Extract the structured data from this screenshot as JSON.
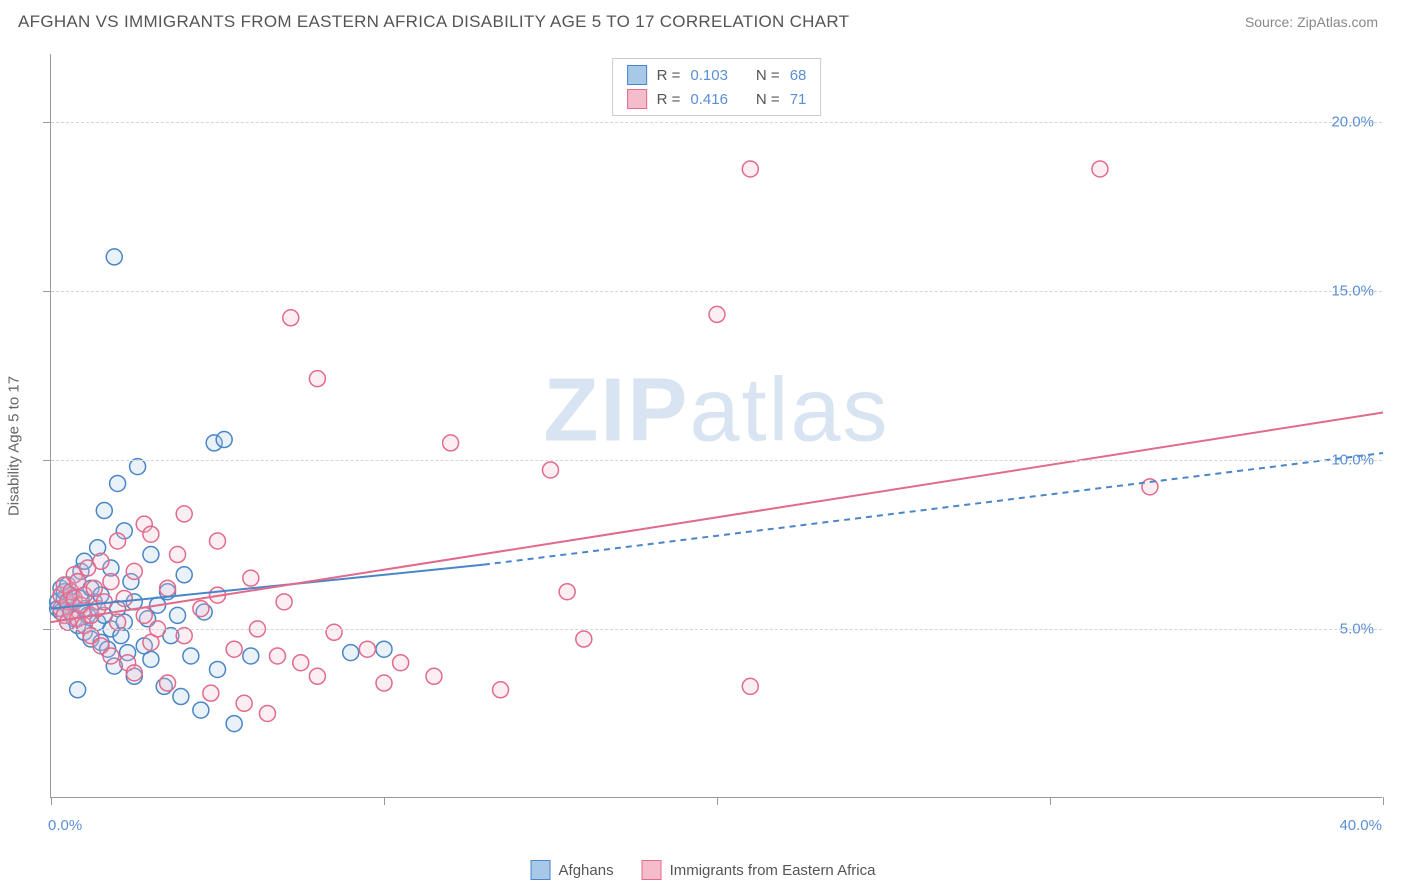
{
  "header": {
    "title": "AFGHAN VS IMMIGRANTS FROM EASTERN AFRICA DISABILITY AGE 5 TO 17 CORRELATION CHART",
    "source": "Source: ZipAtlas.com"
  },
  "watermark": {
    "bold": "ZIP",
    "rest": "atlas"
  },
  "chart": {
    "type": "scatter",
    "xlim": [
      0,
      40
    ],
    "ylim": [
      0,
      22
    ],
    "yticks": [
      5,
      10,
      15,
      20
    ],
    "ytick_labels": [
      "5.0%",
      "10.0%",
      "15.0%",
      "20.0%"
    ],
    "xticks": [
      0,
      10,
      20,
      30,
      40
    ],
    "xmin_label": "0.0%",
    "xmax_label": "40.0%",
    "yaxis_title": "Disability Age 5 to 17",
    "grid_color": "#d5d5d5",
    "background_color": "#ffffff",
    "marker_radius": 8,
    "marker_stroke_width": 1.5,
    "marker_fill_opacity": 0.25,
    "line_width": 2,
    "series": [
      {
        "id": "afghans",
        "label": "Afghans",
        "color_stroke": "#4a86c7",
        "color_fill": "#a8c8e8",
        "r_label": "R =",
        "r_value": "0.103",
        "n_label": "N =",
        "n_value": "68",
        "trend": {
          "x1": 0,
          "y1": 5.6,
          "x2": 13,
          "y2": 6.9,
          "x2_dash": 40,
          "y2_dash": 10.2
        },
        "points": [
          [
            0.2,
            5.8
          ],
          [
            0.2,
            5.6
          ],
          [
            0.3,
            6.2
          ],
          [
            0.3,
            5.5
          ],
          [
            0.4,
            5.9
          ],
          [
            0.4,
            6.1
          ],
          [
            0.4,
            5.4
          ],
          [
            0.5,
            6.3
          ],
          [
            0.5,
            5.7
          ],
          [
            0.5,
            5.2
          ],
          [
            0.6,
            6.0
          ],
          [
            0.6,
            5.5
          ],
          [
            0.7,
            5.8
          ],
          [
            0.7,
            5.3
          ],
          [
            0.8,
            6.4
          ],
          [
            0.8,
            5.1
          ],
          [
            0.9,
            5.9
          ],
          [
            0.9,
            6.7
          ],
          [
            1.0,
            5.6
          ],
          [
            1.0,
            4.9
          ],
          [
            1.0,
            7.0
          ],
          [
            1.1,
            5.4
          ],
          [
            1.2,
            6.2
          ],
          [
            1.2,
            4.7
          ],
          [
            1.3,
            5.8
          ],
          [
            1.4,
            7.4
          ],
          [
            1.4,
            5.2
          ],
          [
            1.5,
            4.6
          ],
          [
            1.5,
            6.0
          ],
          [
            1.6,
            8.5
          ],
          [
            1.6,
            5.4
          ],
          [
            1.7,
            4.4
          ],
          [
            1.8,
            6.8
          ],
          [
            1.8,
            5.0
          ],
          [
            1.9,
            3.9
          ],
          [
            2.0,
            5.6
          ],
          [
            2.0,
            9.3
          ],
          [
            2.1,
            4.8
          ],
          [
            2.2,
            7.9
          ],
          [
            2.2,
            5.2
          ],
          [
            2.3,
            4.3
          ],
          [
            2.4,
            6.4
          ],
          [
            2.5,
            3.6
          ],
          [
            2.5,
            5.8
          ],
          [
            2.6,
            9.8
          ],
          [
            2.8,
            4.5
          ],
          [
            2.9,
            5.3
          ],
          [
            3.0,
            7.2
          ],
          [
            3.0,
            4.1
          ],
          [
            3.2,
            5.7
          ],
          [
            3.4,
            3.3
          ],
          [
            3.5,
            6.1
          ],
          [
            3.6,
            4.8
          ],
          [
            3.8,
            5.4
          ],
          [
            3.9,
            3.0
          ],
          [
            4.0,
            6.6
          ],
          [
            4.2,
            4.2
          ],
          [
            4.5,
            2.6
          ],
          [
            4.6,
            5.5
          ],
          [
            4.9,
            10.5
          ],
          [
            5.0,
            3.8
          ],
          [
            5.2,
            10.6
          ],
          [
            5.5,
            2.2
          ],
          [
            6.0,
            4.2
          ],
          [
            1.9,
            16.0
          ],
          [
            9.0,
            4.3
          ],
          [
            10.0,
            4.4
          ],
          [
            0.8,
            3.2
          ]
        ]
      },
      {
        "id": "eastern_africa",
        "label": "Immigrants from Eastern Africa",
        "color_stroke": "#e16b8c",
        "color_fill": "#f5bccb",
        "r_label": "R =",
        "r_value": "0.416",
        "n_label": "N =",
        "n_value": "71",
        "trend": {
          "x1": 0,
          "y1": 5.2,
          "x2": 40,
          "y2": 11.4,
          "x2_dash": 40,
          "y2_dash": 11.4
        },
        "points": [
          [
            0.3,
            5.6
          ],
          [
            0.3,
            6.0
          ],
          [
            0.4,
            5.4
          ],
          [
            0.4,
            6.3
          ],
          [
            0.5,
            5.8
          ],
          [
            0.5,
            5.2
          ],
          [
            0.6,
            6.1
          ],
          [
            0.6,
            5.5
          ],
          [
            0.7,
            5.9
          ],
          [
            0.7,
            6.6
          ],
          [
            0.8,
            5.3
          ],
          [
            0.8,
            6.4
          ],
          [
            0.9,
            5.7
          ],
          [
            1.0,
            6.0
          ],
          [
            1.0,
            5.1
          ],
          [
            1.1,
            6.8
          ],
          [
            1.2,
            5.4
          ],
          [
            1.2,
            4.8
          ],
          [
            1.3,
            6.2
          ],
          [
            1.4,
            5.6
          ],
          [
            1.5,
            4.5
          ],
          [
            1.5,
            7.0
          ],
          [
            1.6,
            5.8
          ],
          [
            1.8,
            6.4
          ],
          [
            1.8,
            4.2
          ],
          [
            2.0,
            5.2
          ],
          [
            2.0,
            7.6
          ],
          [
            2.2,
            5.9
          ],
          [
            2.3,
            4.0
          ],
          [
            2.5,
            6.7
          ],
          [
            2.5,
            3.7
          ],
          [
            2.8,
            5.4
          ],
          [
            2.8,
            8.1
          ],
          [
            3.0,
            4.6
          ],
          [
            3.0,
            7.8
          ],
          [
            3.2,
            5.0
          ],
          [
            3.5,
            6.2
          ],
          [
            3.5,
            3.4
          ],
          [
            3.8,
            7.2
          ],
          [
            4.0,
            4.8
          ],
          [
            4.0,
            8.4
          ],
          [
            4.5,
            5.6
          ],
          [
            4.8,
            3.1
          ],
          [
            5.0,
            6.0
          ],
          [
            5.0,
            7.6
          ],
          [
            5.5,
            4.4
          ],
          [
            5.8,
            2.8
          ],
          [
            6.0,
            6.5
          ],
          [
            6.2,
            5.0
          ],
          [
            6.5,
            2.5
          ],
          [
            6.8,
            4.2
          ],
          [
            7.0,
            5.8
          ],
          [
            7.2,
            14.2
          ],
          [
            7.5,
            4.0
          ],
          [
            8.0,
            12.4
          ],
          [
            8.0,
            3.6
          ],
          [
            8.5,
            4.9
          ],
          [
            9.5,
            4.4
          ],
          [
            10.0,
            3.4
          ],
          [
            10.5,
            4.0
          ],
          [
            11.5,
            3.6
          ],
          [
            12.0,
            10.5
          ],
          [
            13.5,
            3.2
          ],
          [
            15.0,
            9.7
          ],
          [
            15.5,
            6.1
          ],
          [
            16.0,
            4.7
          ],
          [
            20.0,
            14.3
          ],
          [
            21.0,
            3.3
          ],
          [
            21.0,
            18.6
          ],
          [
            31.5,
            18.6
          ],
          [
            33.0,
            9.2
          ]
        ]
      }
    ]
  },
  "legend_top_layout": {
    "border_color": "#cccccc"
  },
  "colors": {
    "title_color": "#555555",
    "source_color": "#888888",
    "tick_label_color": "#5a8fd6",
    "axis_title_color": "#666666",
    "watermark_color": "#d8e4f2"
  }
}
